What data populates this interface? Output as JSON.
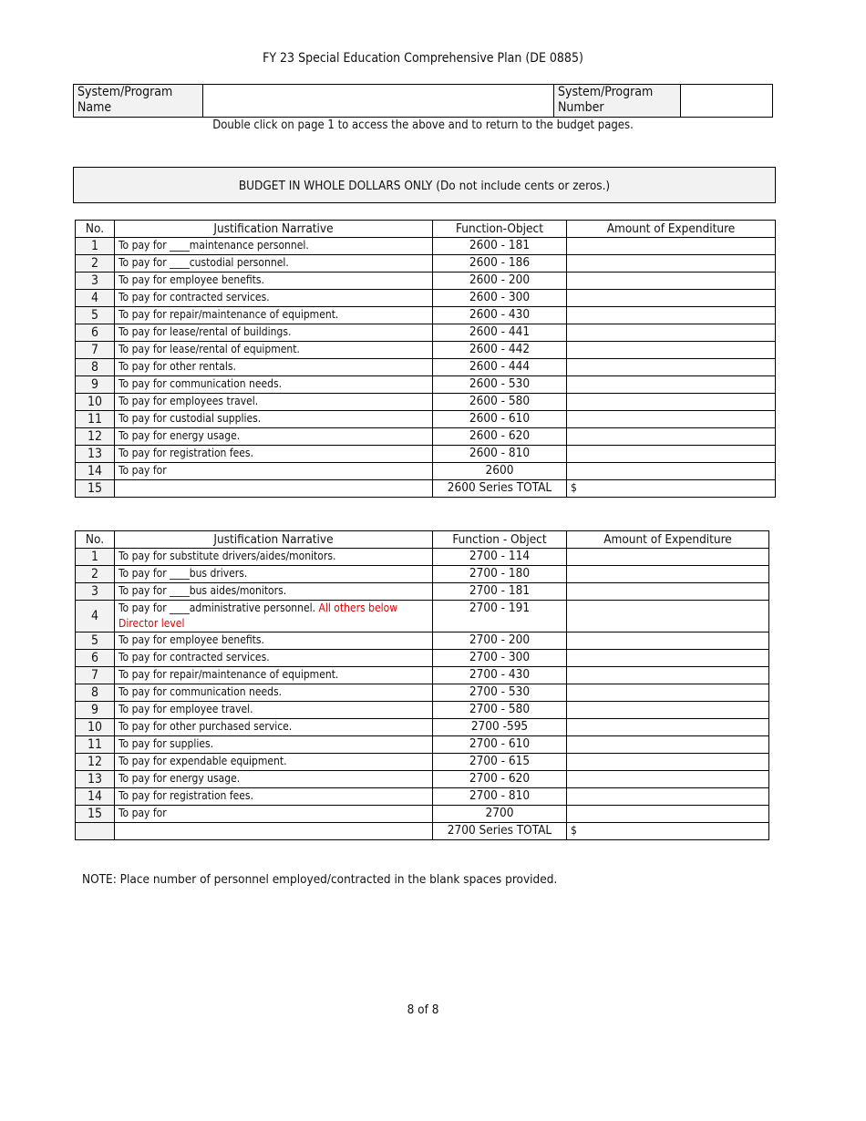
{
  "title": "FY 23 Special Education Comprehensive Plan (DE 0885)",
  "header": {
    "name_label": "System/Program Name",
    "name_value": "",
    "number_label": "System/Program Number",
    "number_value": ""
  },
  "instruction": "Double click on page 1 to access the above and to return to the budget pages.",
  "budget_banner": "BUDGET IN WHOLE DOLLARS ONLY  (Do not include cents or zeros.)",
  "table1": {
    "headers": [
      "No.",
      "Justification Narrative",
      "Function-Object",
      "Amount of Expenditure"
    ],
    "rows": [
      {
        "no": "1",
        "text": "To pay for ____maintenance personnel.",
        "fo": "2600 - 181",
        "amount": ""
      },
      {
        "no": "2",
        "text": "To pay for ____custodial personnel.",
        "fo": "2600 - 186",
        "amount": ""
      },
      {
        "no": "3",
        "text": "To pay for employee benefits.",
        "fo": "2600 - 200",
        "amount": ""
      },
      {
        "no": "4",
        "text": "To pay for contracted services.",
        "fo": "2600 - 300",
        "amount": ""
      },
      {
        "no": "5",
        "text": "To pay for repair/maintenance of equipment.",
        "fo": "2600 - 430",
        "amount": ""
      },
      {
        "no": "6",
        "text": "To pay for lease/rental of buildings.",
        "fo": "2600 - 441",
        "amount": ""
      },
      {
        "no": "7",
        "text": "To pay for lease/rental of equipment.",
        "fo": "2600 - 442",
        "amount": ""
      },
      {
        "no": "8",
        "text": "To pay for other rentals.",
        "fo": "2600 - 444",
        "amount": ""
      },
      {
        "no": "9",
        "text": "To pay for communication needs.",
        "fo": "2600 - 530",
        "amount": ""
      },
      {
        "no": "10",
        "text": "To pay for employees travel.",
        "fo": "2600 - 580",
        "amount": ""
      },
      {
        "no": "11",
        "text": "To pay for custodial supplies.",
        "fo": "2600 - 610",
        "amount": ""
      },
      {
        "no": "12",
        "text": "To pay for energy usage.",
        "fo": "2600 - 620",
        "amount": ""
      },
      {
        "no": "13",
        "text": "To pay for registration fees.",
        "fo": "2600 - 810",
        "amount": ""
      },
      {
        "no": "14",
        "text": "To pay for",
        "fo": "2600",
        "amount": ""
      },
      {
        "no": "15",
        "text": "",
        "fo": "2600 Series TOTAL",
        "amount": "$"
      }
    ]
  },
  "table2": {
    "headers": [
      "No.",
      "Justification Narrative",
      "Function - Object",
      "Amount of Expenditure"
    ],
    "rows": [
      {
        "no": "1",
        "text": "To pay for substitute drivers/aides/monitors.",
        "fo": "2700 - 114",
        "amount": ""
      },
      {
        "no": "2",
        "text": "To pay for ____bus drivers.",
        "fo": "2700 - 180",
        "amount": ""
      },
      {
        "no": "3",
        "text": "To pay for ____bus aides/monitors.",
        "fo": "2700 - 181",
        "amount": ""
      },
      {
        "no": "4",
        "text": "To pay for ____administrative personnel. ",
        "red": "All others below Director level",
        "fo": "2700 - 191",
        "amount": ""
      },
      {
        "no": "5",
        "text": "To pay for employee benefits.",
        "fo": "2700 - 200",
        "amount": ""
      },
      {
        "no": "6",
        "text": "To pay for contracted services.",
        "fo": "2700 - 300",
        "amount": ""
      },
      {
        "no": "7",
        "text": "To pay for repair/maintenance of equipment.",
        "fo": "2700 - 430",
        "amount": ""
      },
      {
        "no": "8",
        "text": "To pay for communication needs.",
        "fo": "2700 - 530",
        "amount": ""
      },
      {
        "no": "9",
        "text": "To pay for employee travel.",
        "fo": "2700 - 580",
        "amount": ""
      },
      {
        "no": "10",
        "text": "To pay for other purchased service.",
        "fo": "2700 -595",
        "amount": ""
      },
      {
        "no": "11",
        "text": "To pay for supplies.",
        "fo": "2700 - 610",
        "amount": ""
      },
      {
        "no": "12",
        "text": "To pay for expendable equipment.",
        "fo": "2700 - 615",
        "amount": ""
      },
      {
        "no": "13",
        "text": "To pay for energy usage.",
        "fo": "2700 - 620",
        "amount": ""
      },
      {
        "no": "14",
        "text": "To pay for registration fees.",
        "fo": "2700 - 810",
        "amount": ""
      },
      {
        "no": "15",
        "text": "To pay for",
        "fo": "2700",
        "amount": ""
      },
      {
        "no": "",
        "text": "",
        "fo": "2700 Series TOTAL",
        "amount": "$"
      }
    ]
  },
  "note": "NOTE:  Place number of personnel employed/contracted in the blank spaces provided.",
  "page_number": "8 of 8"
}
